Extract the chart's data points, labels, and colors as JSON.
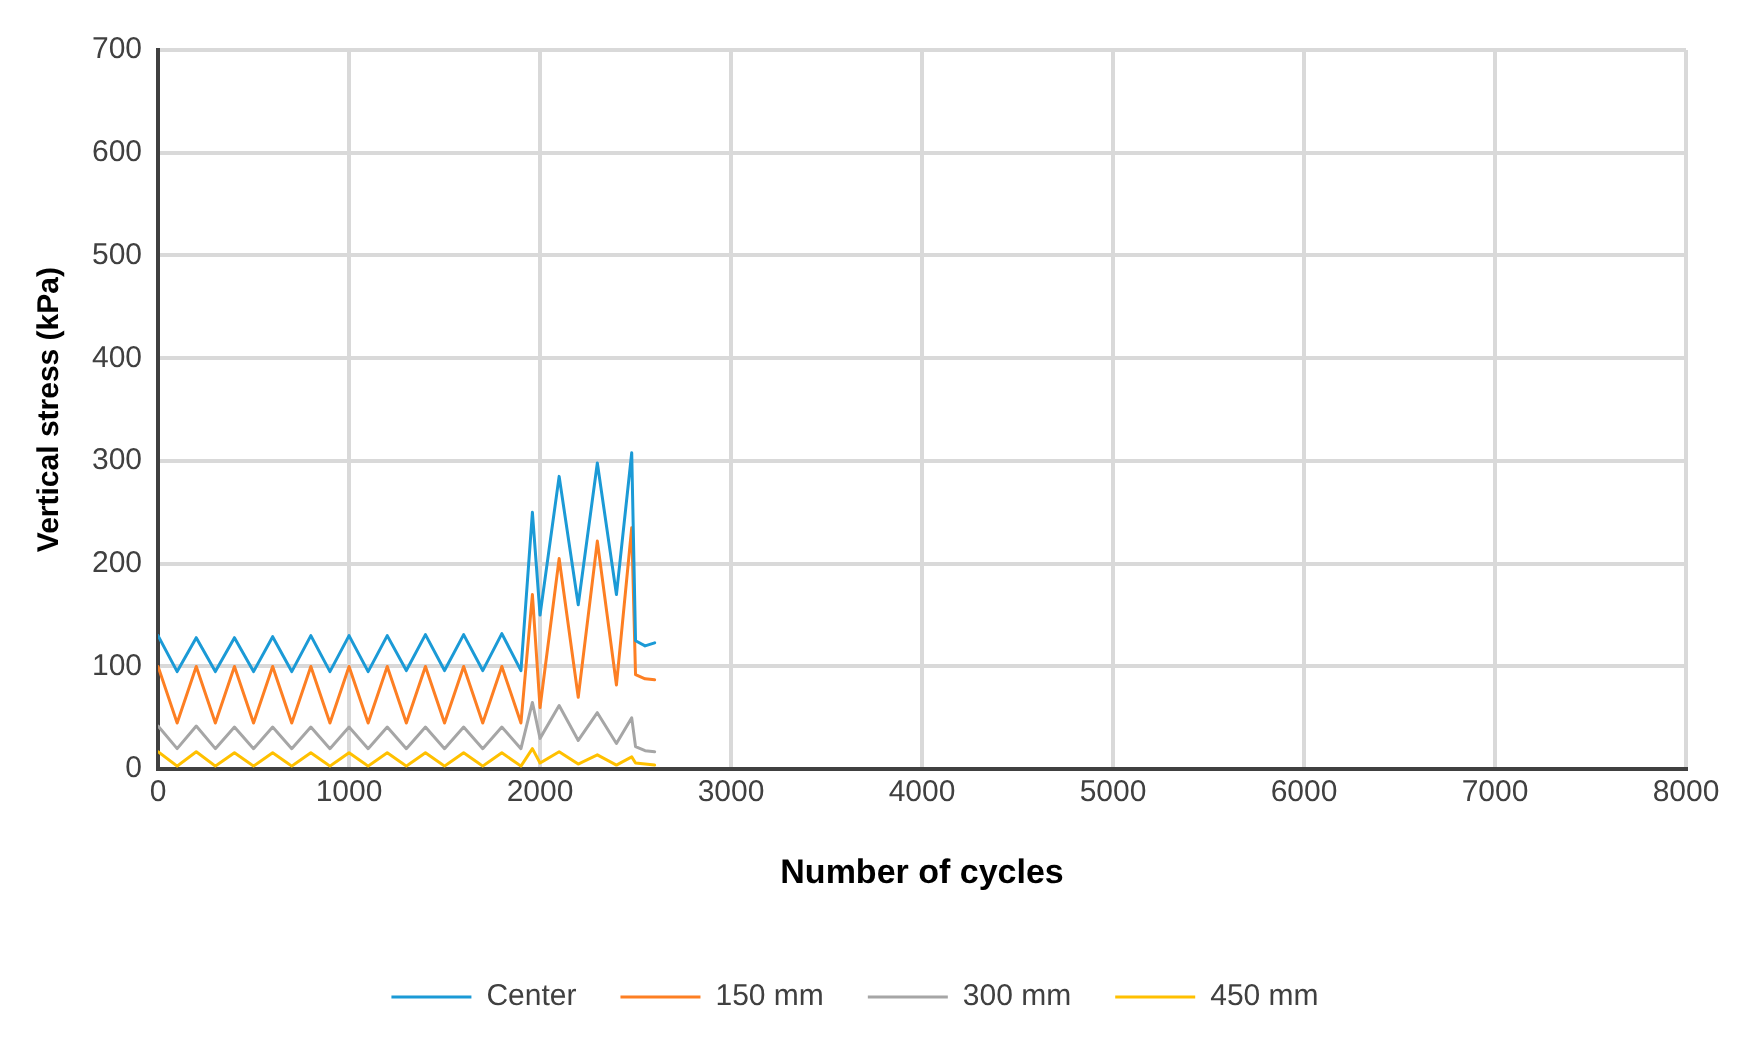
{
  "chart_data": {
    "type": "line",
    "xlabel": "Number of cycles",
    "ylabel": "Vertical stress (kPa)",
    "x": [
      0,
      100,
      200,
      300,
      400,
      500,
      600,
      700,
      800,
      900,
      1000,
      1100,
      1200,
      1300,
      1400,
      1500,
      1600,
      1700,
      1800,
      1900,
      1960,
      2000,
      2100,
      2200,
      2300,
      2400,
      2480,
      2500,
      2550,
      2600
    ],
    "series": [
      {
        "name": "Center",
        "color": "#1b9ad6",
        "values": [
          130,
          95,
          128,
          95,
          128,
          95,
          129,
          95,
          130,
          95,
          130,
          95,
          130,
          96,
          131,
          96,
          131,
          96,
          132,
          96,
          250,
          150,
          285,
          160,
          298,
          170,
          308,
          125,
          120,
          123
        ]
      },
      {
        "name": "150 mm",
        "color": "#fd7f23",
        "values": [
          100,
          45,
          100,
          45,
          100,
          45,
          100,
          45,
          100,
          45,
          100,
          45,
          100,
          45,
          100,
          45,
          100,
          45,
          100,
          45,
          170,
          60,
          205,
          70,
          222,
          82,
          235,
          92,
          88,
          87
        ]
      },
      {
        "name": "300 mm",
        "color": "#a6a6a6",
        "values": [
          42,
          20,
          42,
          20,
          41,
          20,
          41,
          20,
          41,
          20,
          41,
          20,
          41,
          20,
          41,
          20,
          41,
          20,
          41,
          20,
          65,
          30,
          62,
          28,
          55,
          25,
          50,
          22,
          18,
          17
        ]
      },
      {
        "name": "450 mm",
        "color": "#ffc000",
        "values": [
          17,
          3,
          17,
          3,
          16,
          3,
          16,
          3,
          16,
          3,
          16,
          3,
          16,
          3,
          16,
          3,
          16,
          3,
          16,
          3,
          20,
          6,
          17,
          5,
          14,
          4,
          12,
          6,
          5,
          4
        ]
      }
    ],
    "xlim": [
      0,
      8000
    ],
    "xticks": [
      0,
      1000,
      2000,
      3000,
      4000,
      5000,
      6000,
      7000,
      8000
    ],
    "ylim": [
      0,
      700
    ],
    "yticks": [
      0,
      100,
      200,
      300,
      400,
      500,
      600,
      700
    ],
    "grid": true,
    "legend": "bottom",
    "marker": "none",
    "line_style": "solid"
  }
}
